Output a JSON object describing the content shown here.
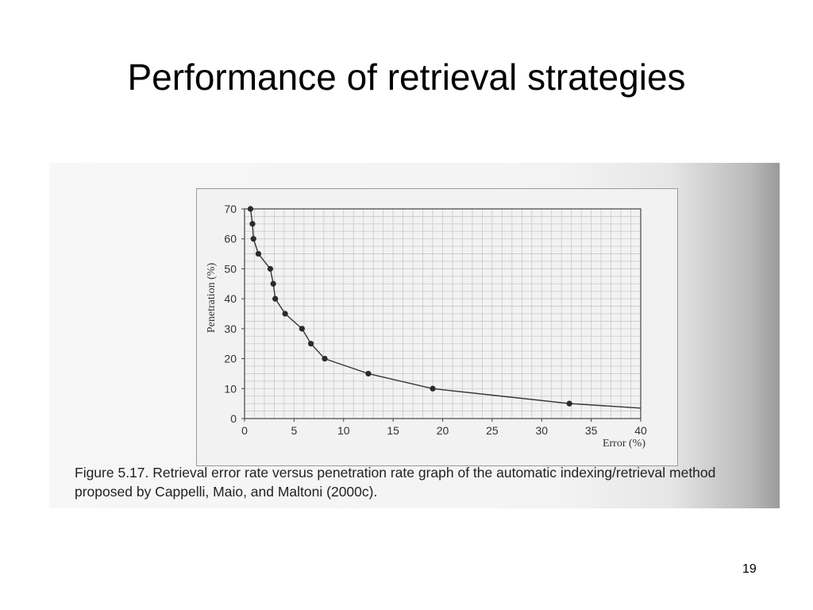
{
  "slide": {
    "title": "Performance of retrieval strategies",
    "page_number": "19"
  },
  "figure": {
    "caption_label": "Figure 5.17.",
    "caption_text": "Retrieval error rate versus penetration rate graph of the automatic indexing/retrieval method proposed by Cappelli, Maio, and Maltoni (2000c)."
  },
  "chart_data": {
    "type": "line",
    "title": "",
    "xlabel": "Error (%)",
    "ylabel": "Penetration (%)",
    "xlim": [
      0,
      40
    ],
    "ylim": [
      0,
      70
    ],
    "xticks": [
      0,
      5,
      10,
      15,
      20,
      25,
      30,
      35,
      40
    ],
    "yticks": [
      0,
      10,
      20,
      30,
      40,
      50,
      60,
      70
    ],
    "grid": true,
    "series": [
      {
        "points": [
          {
            "x": 0.6,
            "y": 70
          },
          {
            "x": 0.8,
            "y": 65
          },
          {
            "x": 0.9,
            "y": 60
          },
          {
            "x": 1.4,
            "y": 55
          },
          {
            "x": 2.6,
            "y": 50
          },
          {
            "x": 2.9,
            "y": 45
          },
          {
            "x": 3.1,
            "y": 40
          },
          {
            "x": 4.1,
            "y": 35
          },
          {
            "x": 5.8,
            "y": 30
          },
          {
            "x": 6.7,
            "y": 25
          },
          {
            "x": 8.1,
            "y": 20
          },
          {
            "x": 12.5,
            "y": 15
          },
          {
            "x": 19.0,
            "y": 10
          },
          {
            "x": 32.8,
            "y": 5
          }
        ],
        "tail": {
          "x": 40,
          "y": 3.5
        }
      }
    ]
  }
}
